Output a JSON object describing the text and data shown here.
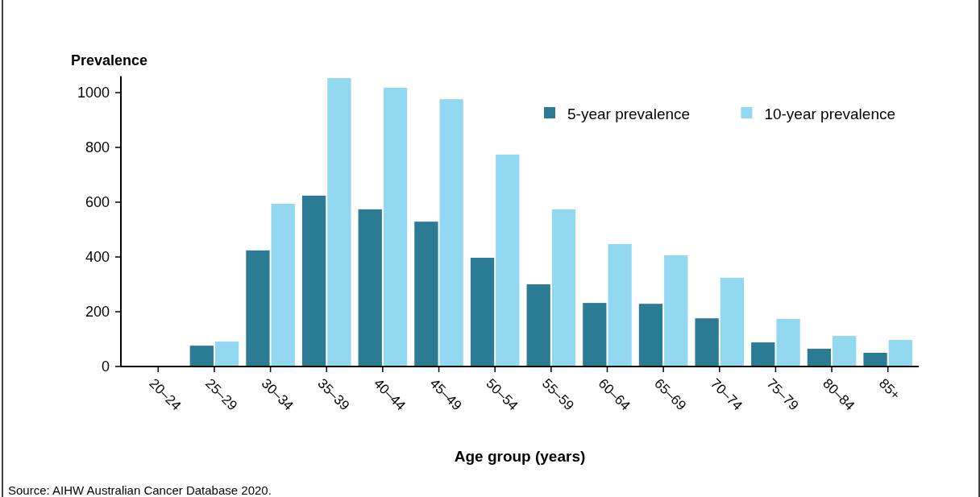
{
  "chart_data": {
    "type": "bar",
    "xlabel": "Age group (years)",
    "ylabel": "Prevalence",
    "categories": [
      "20–24",
      "25–29",
      "30–34",
      "35–39",
      "40–44",
      "45–49",
      "50–54",
      "55–59",
      "60–64",
      "65–69",
      "70–74",
      "75–79",
      "80–84",
      "85+"
    ],
    "series": [
      {
        "name": "5-year prevalence",
        "color": "#2b7b95",
        "values": [
          0,
          76,
          424,
          624,
          574,
          529,
          397,
          300,
          232,
          229,
          176,
          88,
          65,
          50
        ]
      },
      {
        "name": "10-year prevalence",
        "color": "#92d8f0",
        "values": [
          0,
          91,
          594,
          1053,
          1018,
          976,
          774,
          574,
          447,
          406,
          324,
          174,
          112,
          97
        ]
      }
    ],
    "ylim": [
      0,
      1060
    ],
    "yticks": [
      0,
      200,
      400,
      600,
      800,
      1000
    ],
    "grid": false,
    "legend": "top right",
    "annotations": [
      "Source: AIHW Australian Cancer Database 2020."
    ]
  }
}
